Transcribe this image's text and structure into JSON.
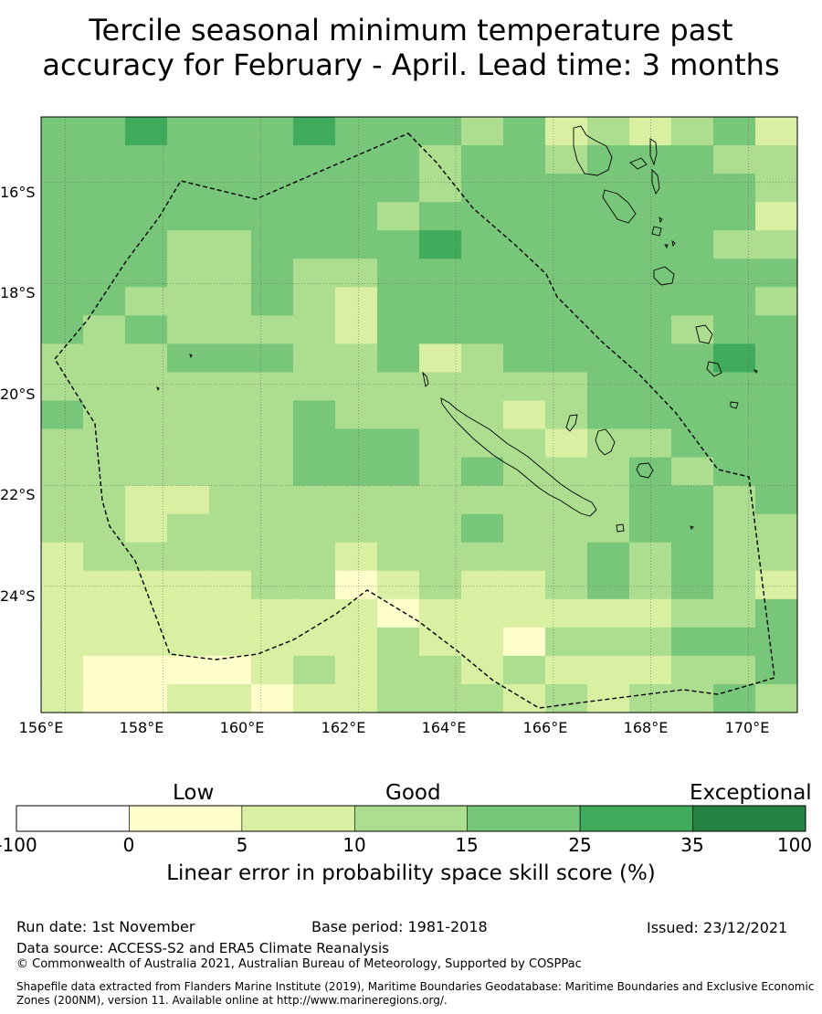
{
  "title": {
    "line1": "Tercile seasonal minimum temperature past",
    "line2": "accuracy for February - April. Lead time: 3 months"
  },
  "map": {
    "lat_labels": [
      "16°S",
      "18°S",
      "20°S",
      "22°S",
      "24°S"
    ],
    "lon_labels": [
      "156°E",
      "158°E",
      "160°E",
      "162°E",
      "164°E",
      "166°E",
      "168°E",
      "170°E"
    ],
    "lon_range": [
      155.5,
      171.0
    ],
    "lat_range": [
      -26.5,
      -14.7
    ],
    "grid": true,
    "boundary": "New Caledonia EEZ (dashed)",
    "data_grid": {
      "rows_north_to_south": 21,
      "cols_west_to_east": 18,
      "category_legend": [
        "0: <0",
        "1: 0-5",
        "2: 5-10",
        "3: 10-15",
        "4: 15-25",
        "5: 25-35",
        "6: 35-100"
      ],
      "values": [
        [
          4,
          4,
          5,
          4,
          4,
          4,
          5,
          4,
          4,
          4,
          3,
          4,
          2,
          3,
          2,
          3,
          4,
          2
        ],
        [
          4,
          4,
          4,
          4,
          4,
          4,
          4,
          4,
          4,
          3,
          4,
          4,
          3,
          4,
          4,
          4,
          3,
          3
        ],
        [
          4,
          4,
          4,
          4,
          4,
          4,
          4,
          4,
          4,
          3,
          4,
          4,
          4,
          4,
          4,
          4,
          4,
          3
        ],
        [
          4,
          4,
          4,
          4,
          4,
          4,
          4,
          4,
          3,
          4,
          4,
          4,
          4,
          4,
          4,
          4,
          4,
          2
        ],
        [
          4,
          4,
          4,
          3,
          3,
          4,
          4,
          4,
          4,
          5,
          4,
          4,
          4,
          4,
          4,
          4,
          3,
          3
        ],
        [
          4,
          4,
          4,
          3,
          3,
          4,
          3,
          3,
          4,
          4,
          4,
          4,
          4,
          4,
          4,
          4,
          4,
          4
        ],
        [
          4,
          4,
          3,
          3,
          3,
          4,
          3,
          2,
          4,
          4,
          4,
          4,
          4,
          4,
          4,
          4,
          4,
          3
        ],
        [
          4,
          3,
          4,
          3,
          3,
          3,
          3,
          2,
          4,
          4,
          4,
          4,
          4,
          4,
          4,
          3,
          4,
          4
        ],
        [
          3,
          3,
          3,
          4,
          4,
          4,
          3,
          3,
          4,
          2,
          3,
          4,
          4,
          4,
          4,
          4,
          5,
          4
        ],
        [
          3,
          3,
          3,
          3,
          3,
          3,
          3,
          3,
          3,
          3,
          3,
          3,
          3,
          4,
          4,
          4,
          4,
          4
        ],
        [
          4,
          3,
          3,
          3,
          3,
          3,
          4,
          3,
          3,
          3,
          3,
          2,
          3,
          4,
          4,
          4,
          4,
          4
        ],
        [
          3,
          3,
          3,
          3,
          3,
          3,
          4,
          4,
          4,
          3,
          3,
          3,
          2,
          3,
          3,
          4,
          4,
          4
        ],
        [
          3,
          3,
          3,
          3,
          3,
          3,
          4,
          4,
          4,
          3,
          4,
          3,
          3,
          3,
          4,
          3,
          4,
          4
        ],
        [
          3,
          3,
          2,
          2,
          3,
          3,
          3,
          3,
          3,
          3,
          3,
          3,
          3,
          3,
          4,
          4,
          3,
          4
        ],
        [
          3,
          3,
          2,
          3,
          3,
          3,
          3,
          3,
          3,
          3,
          4,
          3,
          3,
          3,
          4,
          4,
          3,
          3
        ],
        [
          2,
          3,
          3,
          3,
          3,
          3,
          3,
          2,
          3,
          3,
          3,
          3,
          3,
          4,
          3,
          4,
          3,
          3
        ],
        [
          2,
          2,
          2,
          2,
          2,
          3,
          3,
          1,
          2,
          3,
          2,
          2,
          3,
          4,
          3,
          4,
          3,
          2
        ],
        [
          2,
          2,
          2,
          2,
          2,
          2,
          2,
          2,
          1,
          2,
          2,
          2,
          2,
          2,
          2,
          3,
          3,
          4
        ],
        [
          2,
          2,
          2,
          2,
          2,
          2,
          2,
          2,
          3,
          2,
          2,
          1,
          3,
          3,
          3,
          4,
          4,
          4
        ],
        [
          2,
          1,
          1,
          1,
          1,
          2,
          3,
          2,
          3,
          3,
          2,
          3,
          2,
          2,
          2,
          3,
          3,
          4
        ],
        [
          2,
          1,
          1,
          2,
          2,
          1,
          2,
          2,
          3,
          3,
          3,
          2,
          3,
          2,
          3,
          3,
          4,
          3
        ]
      ]
    }
  },
  "colorbar": {
    "categories": [
      "Low",
      "Good",
      "Exceptional"
    ],
    "ticks": [
      "-100",
      "0",
      "5",
      "10",
      "15",
      "25",
      "35",
      "100"
    ],
    "colors": [
      "#ffffff",
      "#ffffcc",
      "#d9f0a3",
      "#addd8e",
      "#78c679",
      "#41ab5d",
      "#238443"
    ],
    "label": "Linear error in probability space skill score (%)"
  },
  "footer": {
    "run_date": "Run date: 1st November",
    "base_period": "Base period: 1981-2018",
    "issued": "Issued: 23/12/2021",
    "data_source": "Data source: ACCESS-S2 and ERA5 Climate Reanalysis",
    "copyright": "© Commonwealth of Australia 2021, Australian Bureau of Meteorology, Supported by COSPPac",
    "shapefile_line1": "Shapefile data extracted from Flanders Marine Institute (2019), Maritime Boundaries Geodatabase: Maritime Boundaries and Exclusive Economic",
    "shapefile_line2": "Zones (200NM), version 11. Available online at http://www.marineregions.org/."
  }
}
